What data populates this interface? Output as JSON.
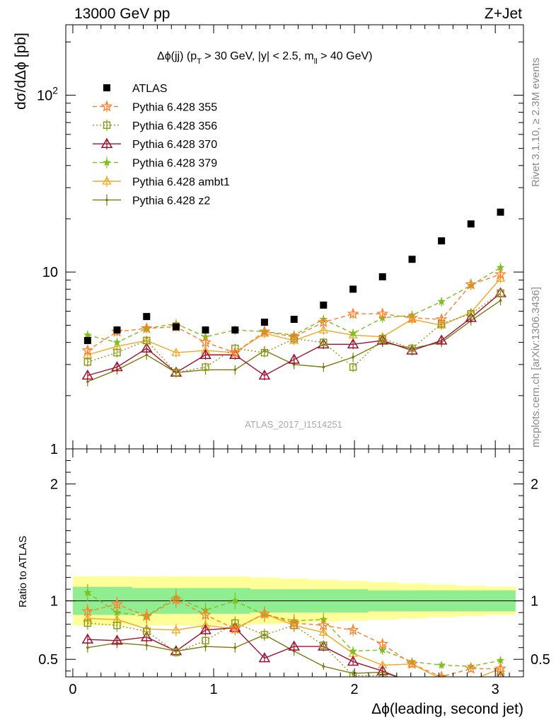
{
  "header": {
    "left": "13000 GeV pp",
    "right": "Z+Jet"
  },
  "side_labels": {
    "rivet": "Rivet 3.1.10, ≥ 2.3M events",
    "mcplots": "mcplots.cern.ch [arXiv:1306.3436]"
  },
  "colors": {
    "atlas": "#000000",
    "p355": "#ff7f2a",
    "p356": "#8c9b1e",
    "p370": "#a01030",
    "p379": "#7fbf1f",
    "ambt1": "#f5a623",
    "z2": "#7a7a10",
    "band_inner": "#90ee90",
    "band_outer": "#ffff99"
  },
  "chart_data": [
    {
      "type": "scatter",
      "panel": "main",
      "title": "Δϕ(jj) (p_T > 30 GeV, |y| < 2.5, m_ll > 40 GeV)",
      "watermark": "ATLAS_2017_I1514251",
      "xlabel": "Δϕ(leading, second jet)",
      "ylabel": "dσ/dΔϕ [pb]",
      "y_scale": "log",
      "xlim": [
        -0.05,
        3.2
      ],
      "ylim": [
        1,
        250
      ],
      "x_ticks": [
        "0",
        "1",
        "2",
        "3"
      ],
      "y_ticks": [
        "1",
        "10",
        "10^2"
      ],
      "legend_position": "top-left",
      "x": [
        0.105,
        0.314,
        0.524,
        0.733,
        0.942,
        1.152,
        1.361,
        1.571,
        1.78,
        1.99,
        2.199,
        2.409,
        2.618,
        2.827,
        3.037
      ],
      "series": [
        {
          "name": "ATLAS",
          "key": "atlas",
          "values": [
            4.1,
            4.7,
            5.6,
            4.9,
            4.7,
            4.7,
            5.2,
            5.4,
            6.5,
            8.0,
            9.4,
            11.8,
            15.0,
            18.7,
            21.8
          ]
        },
        {
          "name": "Pythia 6.428 355",
          "key": "p355",
          "values": [
            3.6,
            4.6,
            4.8,
            4.9,
            4.0,
            3.5,
            4.6,
            4.3,
            5.2,
            5.8,
            5.8,
            5.5,
            5.4,
            8.5,
            9.7
          ]
        },
        {
          "name": "Pythia 6.428 356",
          "key": "p356",
          "values": [
            3.1,
            3.5,
            4.1,
            2.7,
            2.9,
            3.7,
            3.5,
            4.2,
            4.0,
            2.9,
            4.2,
            3.7,
            5.1,
            5.8,
            7.6
          ]
        },
        {
          "name": "Pythia 6.428 370",
          "key": "p370",
          "values": [
            2.6,
            2.9,
            3.7,
            2.7,
            3.4,
            3.4,
            2.6,
            3.2,
            3.9,
            3.9,
            4.1,
            3.6,
            4.1,
            5.5,
            7.6
          ]
        },
        {
          "name": "Pythia 6.428 379",
          "key": "p379",
          "values": [
            4.4,
            4.0,
            4.8,
            5.1,
            4.3,
            4.7,
            4.6,
            4.4,
            5.4,
            4.5,
            5.5,
            5.7,
            6.8,
            8.4,
            10.6
          ]
        },
        {
          "name": "Pythia 6.428 ambt1",
          "key": "ambt1",
          "values": [
            3.4,
            3.8,
            4.1,
            3.5,
            3.6,
            3.5,
            4.5,
            4.1,
            4.7,
            4.4,
            4.3,
            5.4,
            5.0,
            5.9,
            9.2
          ]
        },
        {
          "name": "Pythia 6.428 z2",
          "key": "z2",
          "values": [
            2.4,
            2.8,
            3.4,
            2.7,
            2.8,
            2.8,
            3.6,
            3.0,
            2.9,
            3.3,
            4.0,
            3.7,
            4.0,
            5.3,
            6.9
          ]
        }
      ]
    },
    {
      "type": "scatter",
      "panel": "ratio",
      "ylabel": "Ratio to ATLAS",
      "xlabel": "Δϕ(leading, second jet)",
      "xlim": [
        -0.05,
        3.2
      ],
      "ylim": [
        0.35,
        2.3
      ],
      "y_ticks": [
        "0.5",
        "1",
        "2"
      ],
      "x": [
        0.105,
        0.314,
        0.524,
        0.733,
        0.942,
        1.152,
        1.361,
        1.571,
        1.78,
        1.99,
        2.199,
        2.409,
        2.618,
        2.827,
        3.037
      ],
      "band_inner": [
        0.12,
        0.12,
        0.11,
        0.11,
        0.11,
        0.11,
        0.1,
        0.1,
        0.1,
        0.1,
        0.09,
        0.09,
        0.09,
        0.09,
        0.09
      ],
      "band_outer": [
        0.21,
        0.21,
        0.21,
        0.21,
        0.21,
        0.21,
        0.2,
        0.19,
        0.18,
        0.17,
        0.16,
        0.15,
        0.14,
        0.13,
        0.12
      ],
      "series": [
        {
          "key": "p355",
          "values": [
            0.91,
            0.97,
            0.87,
            1.01,
            0.88,
            0.76,
            0.89,
            0.81,
            0.79,
            0.75,
            0.63,
            0.46,
            0.35,
            0.42,
            0.42
          ]
        },
        {
          "key": "p356",
          "values": [
            0.81,
            0.79,
            0.74,
            0.56,
            0.66,
            0.81,
            0.71,
            0.79,
            0.62,
            0.36,
            0.36,
            0.31,
            0.33,
            0.31,
            0.35
          ]
        },
        {
          "key": "p370",
          "values": [
            0.67,
            0.66,
            0.69,
            0.57,
            0.75,
            0.77,
            0.51,
            0.61,
            0.61,
            0.48,
            0.4,
            0.3,
            0.27,
            0.29,
            0.35
          ]
        },
        {
          "key": "p379",
          "values": [
            1.07,
            0.9,
            0.87,
            1.03,
            0.92,
            1.0,
            0.88,
            0.83,
            0.84,
            0.57,
            0.58,
            0.48,
            0.45,
            0.44,
            0.49
          ]
        },
        {
          "key": "ambt1",
          "values": [
            0.85,
            0.84,
            0.76,
            0.75,
            0.79,
            0.76,
            0.89,
            0.79,
            0.73,
            0.55,
            0.45,
            0.46,
            0.33,
            0.32,
            0.42
          ]
        },
        {
          "key": "z2",
          "values": [
            0.6,
            0.64,
            0.62,
            0.57,
            0.61,
            0.6,
            0.71,
            0.57,
            0.44,
            0.38,
            0.39,
            0.31,
            0.27,
            0.28,
            0.32
          ]
        }
      ]
    }
  ]
}
